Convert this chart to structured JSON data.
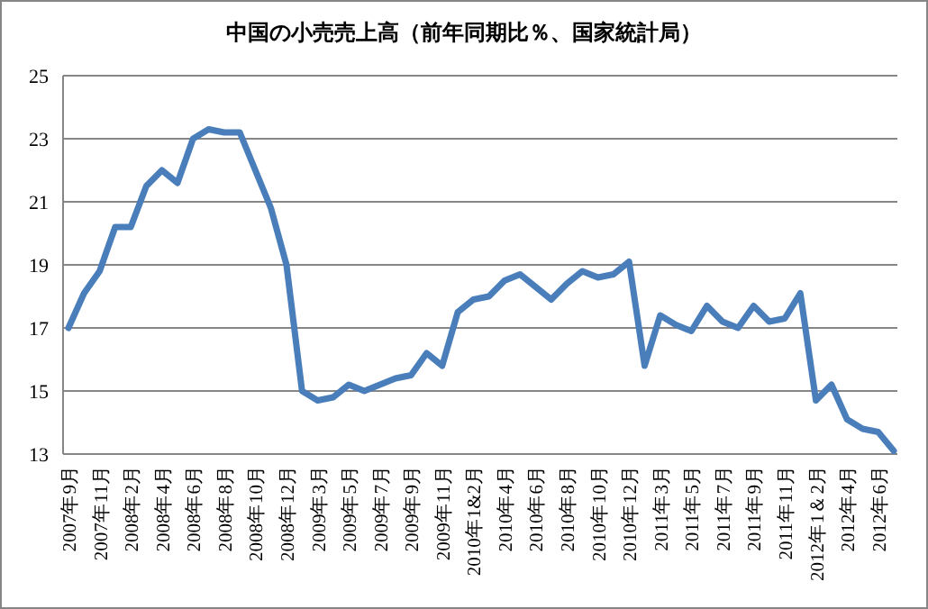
{
  "chart_data": {
    "type": "line",
    "title": "中国の小売売上高（前年同期比％、国家統計局）",
    "categories": [
      "2007年9月",
      null,
      "2007年11月",
      null,
      "2008年2月",
      null,
      "2008年4月",
      null,
      "2008年6月",
      null,
      "2008年8月",
      null,
      "2008年10月",
      null,
      "2008年12月",
      null,
      "2009年3月",
      null,
      "2009年5月",
      null,
      "2009年7月",
      null,
      "2009年9月",
      null,
      "2009年11月",
      null,
      "2010年1&2月",
      null,
      "2010年4月",
      null,
      "2010年6月",
      null,
      "2010年8月",
      null,
      "2010年10月",
      null,
      "2010年12月",
      null,
      "2011年3月",
      null,
      "2011年5月",
      null,
      "2011年7月",
      null,
      "2011年9月",
      null,
      "2011年11月",
      null,
      "2012年1＆2月",
      null,
      "2012年4月",
      null,
      "2012年6月",
      null
    ],
    "series": [
      {
        "color": "#4a7ebb",
        "values": [
          17.0,
          18.1,
          18.8,
          20.2,
          20.2,
          21.5,
          22.0,
          21.6,
          23.0,
          23.3,
          23.2,
          23.2,
          22.0,
          20.8,
          19.0,
          15.0,
          14.7,
          14.8,
          15.2,
          15.0,
          15.2,
          15.4,
          15.5,
          16.2,
          15.8,
          17.5,
          17.9,
          18.0,
          18.5,
          18.7,
          18.3,
          17.9,
          18.4,
          18.8,
          18.6,
          18.7,
          19.1,
          15.8,
          17.4,
          17.1,
          16.9,
          17.7,
          17.2,
          17.0,
          17.7,
          17.2,
          17.3,
          18.1,
          14.7,
          15.2,
          14.1,
          13.8,
          13.7,
          13.1
        ]
      }
    ],
    "ylim": [
      13,
      25
    ],
    "yticks": [
      13,
      15,
      17,
      19,
      21,
      23,
      25
    ],
    "grid": "y",
    "marker": "none",
    "line_style": "solid"
  }
}
